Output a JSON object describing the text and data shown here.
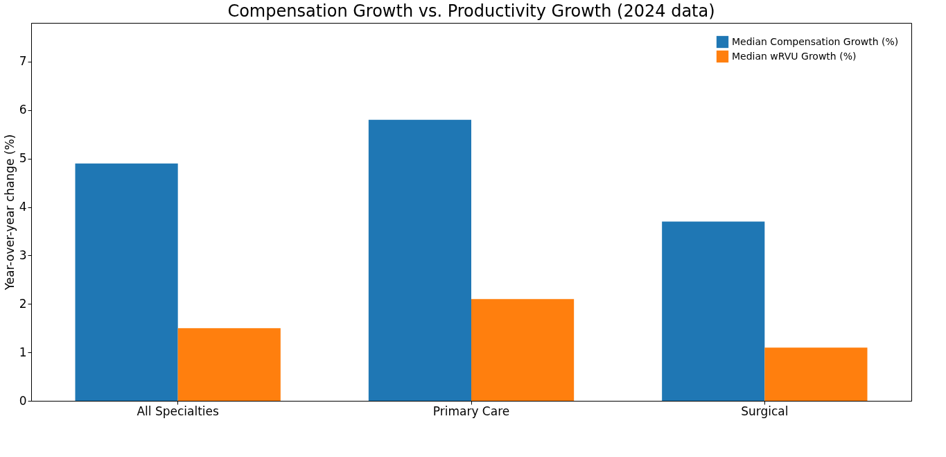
{
  "chart_data": {
    "type": "bar",
    "title": "Compensation Growth vs. Productivity Growth (2024 data)",
    "ylabel": "Year-over-year change (%)",
    "categories": [
      "All Specialties",
      "Primary Care",
      "Surgical"
    ],
    "series": [
      {
        "name": "Median Compensation Growth (%)",
        "color": "#1f77b4",
        "values": [
          4.9,
          5.8,
          3.7
        ]
      },
      {
        "name": "Median wRVU Growth (%)",
        "color": "#ff7f0e",
        "values": [
          1.5,
          2.1,
          1.1
        ]
      }
    ],
    "ylim": [
      0,
      7.8
    ],
    "yticks": [
      0,
      1,
      2,
      3,
      4,
      5,
      6,
      7
    ],
    "legend": "top right"
  }
}
